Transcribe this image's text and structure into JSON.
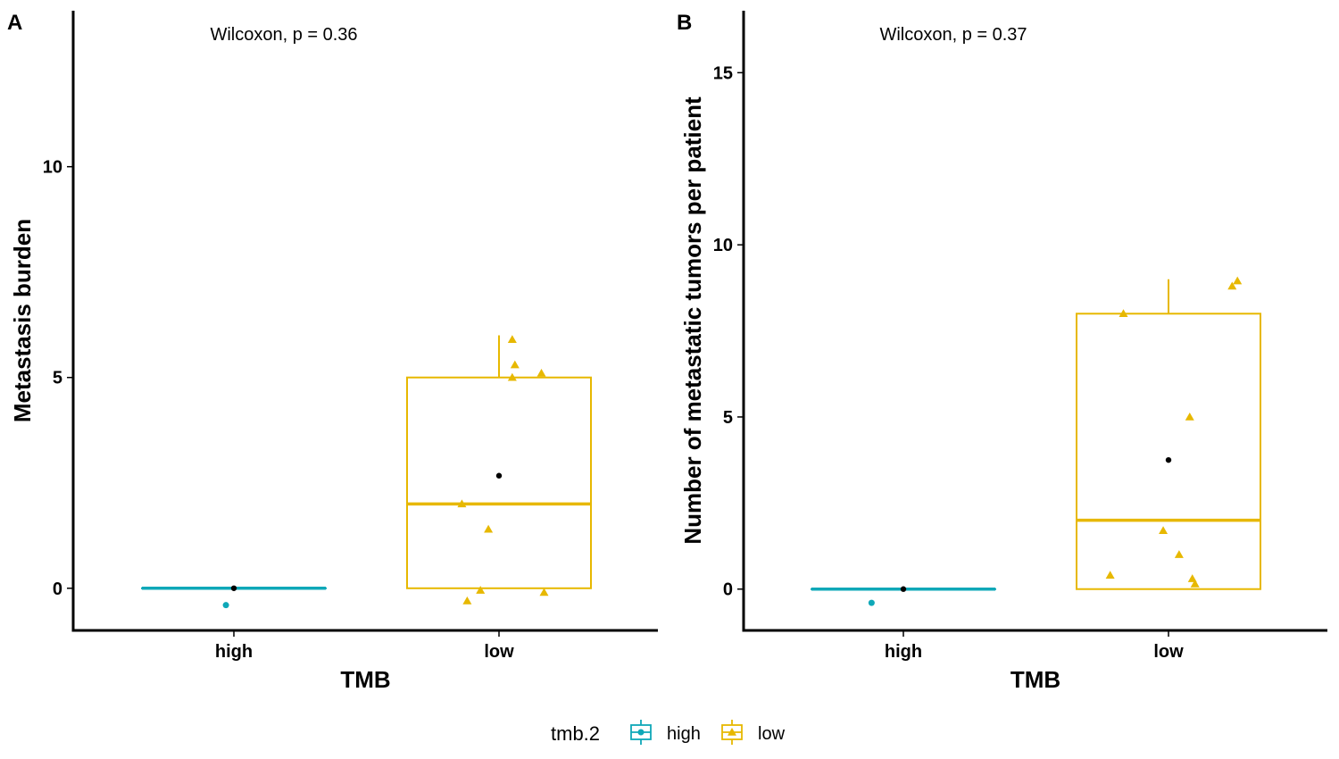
{
  "colors": {
    "high": "#0FA8B8",
    "low": "#E7B800",
    "mean": "#000000",
    "axis": "#000000"
  },
  "legend": {
    "title": "tmb.2",
    "items": [
      {
        "key": "high",
        "label": "high",
        "shape": "circle"
      },
      {
        "key": "low",
        "label": "low",
        "shape": "triangle"
      }
    ]
  },
  "chart_data": [
    {
      "type": "box",
      "panel": "A",
      "annotation": "Wilcoxon, p = 0.36",
      "xlabel": "TMB",
      "ylabel": "Metastasis burden",
      "categories": [
        "high",
        "low"
      ],
      "ylim": [
        -1,
        13.7
      ],
      "yticks": [
        0,
        5,
        10
      ],
      "grid": false,
      "boxes": [
        {
          "category": "high",
          "q1": 0,
          "median": 0,
          "q3": 0,
          "whisker_low": 0,
          "whisker_high": 0,
          "mean": 0
        },
        {
          "category": "low",
          "q1": 0,
          "median": 2,
          "q3": 5,
          "whisker_low": 0,
          "whisker_high": 6,
          "mean": 2.67
        }
      ],
      "points": [
        {
          "category": "high",
          "x": -0.03,
          "y": -0.4
        },
        {
          "category": "low",
          "x": -0.12,
          "y": -0.3
        },
        {
          "category": "low",
          "x": -0.07,
          "y": -0.05
        },
        {
          "category": "low",
          "x": 0.17,
          "y": -0.1
        },
        {
          "category": "low",
          "x": -0.14,
          "y": 2.0
        },
        {
          "category": "low",
          "x": -0.04,
          "y": 1.4
        },
        {
          "category": "low",
          "x": 0.05,
          "y": 5.9
        },
        {
          "category": "low",
          "x": 0.06,
          "y": 5.3
        },
        {
          "category": "low",
          "x": 0.05,
          "y": 5.0
        },
        {
          "category": "low",
          "x": 0.16,
          "y": 5.1
        }
      ]
    },
    {
      "type": "box",
      "panel": "B",
      "annotation": "Wilcoxon, p = 0.37",
      "xlabel": "TMB",
      "ylabel": "Number of metastatic tumors per patient",
      "categories": [
        "high",
        "low"
      ],
      "ylim": [
        -1.2,
        16.8
      ],
      "yticks": [
        0,
        5,
        10,
        15
      ],
      "grid": false,
      "boxes": [
        {
          "category": "high",
          "q1": 0,
          "median": 0,
          "q3": 0,
          "whisker_low": 0,
          "whisker_high": 0,
          "mean": 0
        },
        {
          "category": "low",
          "q1": 0,
          "median": 2,
          "q3": 8,
          "whisker_low": 0,
          "whisker_high": 9,
          "mean": 3.75
        }
      ],
      "points": [
        {
          "category": "high",
          "x": -0.12,
          "y": -0.4
        },
        {
          "category": "low",
          "x": -0.17,
          "y": 8.0
        },
        {
          "category": "low",
          "x": 0.24,
          "y": 8.8
        },
        {
          "category": "low",
          "x": 0.26,
          "y": 8.95
        },
        {
          "category": "low",
          "x": 0.08,
          "y": 5.0
        },
        {
          "category": "low",
          "x": -0.02,
          "y": 1.7
        },
        {
          "category": "low",
          "x": 0.04,
          "y": 1.0
        },
        {
          "category": "low",
          "x": -0.22,
          "y": 0.4
        },
        {
          "category": "low",
          "x": 0.09,
          "y": 0.3
        },
        {
          "category": "low",
          "x": 0.1,
          "y": 0.15
        }
      ]
    }
  ]
}
